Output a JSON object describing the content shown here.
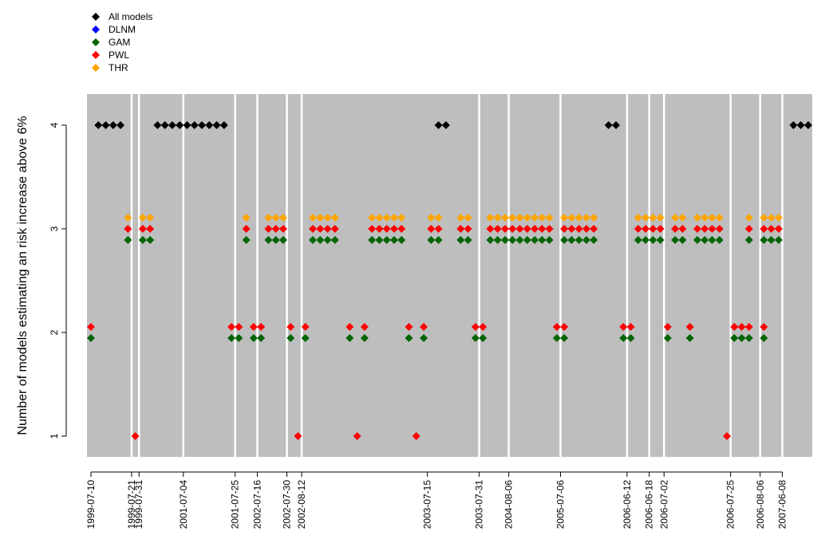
{
  "chart_data": {
    "type": "scatter",
    "title": "",
    "xlabel": "",
    "ylabel": "Number of models estimating an risk increase above 6%",
    "ylim": [
      0.8,
      4.3
    ],
    "y_ticks": [
      "1",
      "2",
      "3",
      "4"
    ],
    "grid": "off",
    "plot_background": "#bebebe",
    "legend_position": "top-left",
    "legend": [
      {
        "label": "All models",
        "color": "#000000"
      },
      {
        "label": "DLNM",
        "color": "#0000ff"
      },
      {
        "label": "GAM",
        "color": "#006400"
      },
      {
        "label": "PWL",
        "color": "#ff0000"
      },
      {
        "label": "THR",
        "color": "#ffa500"
      }
    ],
    "x_index_range": [
      0,
      97
    ],
    "x_ticks": [
      {
        "label": "1999-07-10",
        "index": 0
      },
      {
        "label": "1999-07-21",
        "index": 5.5
      },
      {
        "label": "1999-07-31",
        "index": 6.5
      },
      {
        "label": "2001-07-04",
        "index": 12.5
      },
      {
        "label": "2001-07-25",
        "index": 19.5
      },
      {
        "label": "2002-07-16",
        "index": 22.5
      },
      {
        "label": "2002-07-30",
        "index": 26.5
      },
      {
        "label": "2002-08-12",
        "index": 28.5
      },
      {
        "label": "2003-07-15",
        "index": 45.5
      },
      {
        "label": "2003-07-31",
        "index": 52.5
      },
      {
        "label": "2004-08-06",
        "index": 56.5
      },
      {
        "label": "2005-07-06",
        "index": 63.5
      },
      {
        "label": "2006-06-12",
        "index": 72.5
      },
      {
        "label": "2006-06-18",
        "index": 75.5
      },
      {
        "label": "2006-07-02",
        "index": 77.5
      },
      {
        "label": "2006-07-25",
        "index": 86.5
      },
      {
        "label": "2006-08-06",
        "index": 90.5
      },
      {
        "label": "2007-06-08",
        "index": 93.5
      }
    ],
    "separators": [
      5.5,
      6.5,
      12.5,
      19.5,
      22.5,
      26.5,
      28.5,
      52.5,
      56.5,
      63.5,
      72.5,
      75.5,
      77.5,
      86.5,
      90.5,
      93.5
    ],
    "series": [
      {
        "name": "All models",
        "color": "#000000",
        "y": 4,
        "x": [
          1,
          2,
          3,
          4,
          9,
          10,
          11,
          12,
          13,
          14,
          15,
          16,
          17,
          18,
          47,
          48,
          70,
          71,
          95,
          96,
          97
        ]
      },
      {
        "name": "THR",
        "color": "#ffa500",
        "y": 3,
        "x": [
          5,
          7,
          8,
          21,
          24,
          25,
          26,
          30,
          31,
          32,
          33,
          38,
          39,
          40,
          41,
          42,
          46,
          47,
          50,
          51,
          54,
          55,
          56,
          57,
          58,
          59,
          60,
          61,
          62,
          64,
          65,
          66,
          67,
          68,
          74,
          75,
          76,
          77,
          79,
          80,
          82,
          83,
          84,
          85,
          89,
          91,
          92,
          93
        ]
      },
      {
        "name": "PWL",
        "color": "#ff0000",
        "y": 3,
        "x": [
          5,
          7,
          8,
          21,
          24,
          25,
          26,
          30,
          31,
          32,
          33,
          38,
          39,
          40,
          41,
          42,
          46,
          47,
          50,
          51,
          54,
          55,
          56,
          57,
          58,
          59,
          60,
          61,
          62,
          64,
          65,
          66,
          67,
          68,
          74,
          75,
          76,
          77,
          79,
          80,
          82,
          83,
          84,
          85,
          89,
          91,
          92,
          93
        ]
      },
      {
        "name": "GAM",
        "color": "#006400",
        "y": 3,
        "x": [
          5,
          7,
          8,
          21,
          24,
          25,
          26,
          30,
          31,
          32,
          33,
          38,
          39,
          40,
          41,
          42,
          46,
          47,
          50,
          51,
          54,
          55,
          56,
          57,
          58,
          59,
          60,
          61,
          62,
          64,
          65,
          66,
          67,
          68,
          74,
          75,
          76,
          77,
          79,
          80,
          82,
          83,
          84,
          85,
          89,
          91,
          92,
          93
        ]
      },
      {
        "name": "PWL",
        "color": "#ff0000",
        "y": 2,
        "x": [
          0,
          19,
          20,
          22,
          23,
          27,
          29,
          35,
          37,
          43,
          45,
          52,
          53,
          63,
          64,
          72,
          73,
          78,
          81,
          87,
          88,
          89,
          91
        ]
      },
      {
        "name": "GAM",
        "color": "#006400",
        "y": 2,
        "x": [
          0,
          19,
          20,
          22,
          23,
          27,
          29,
          35,
          37,
          43,
          45,
          52,
          53,
          63,
          64,
          72,
          73,
          78,
          81,
          87,
          88,
          89,
          91
        ]
      },
      {
        "name": "PWL",
        "color": "#ff0000",
        "y": 1,
        "x": [
          6,
          28,
          36,
          44,
          86
        ]
      }
    ]
  }
}
